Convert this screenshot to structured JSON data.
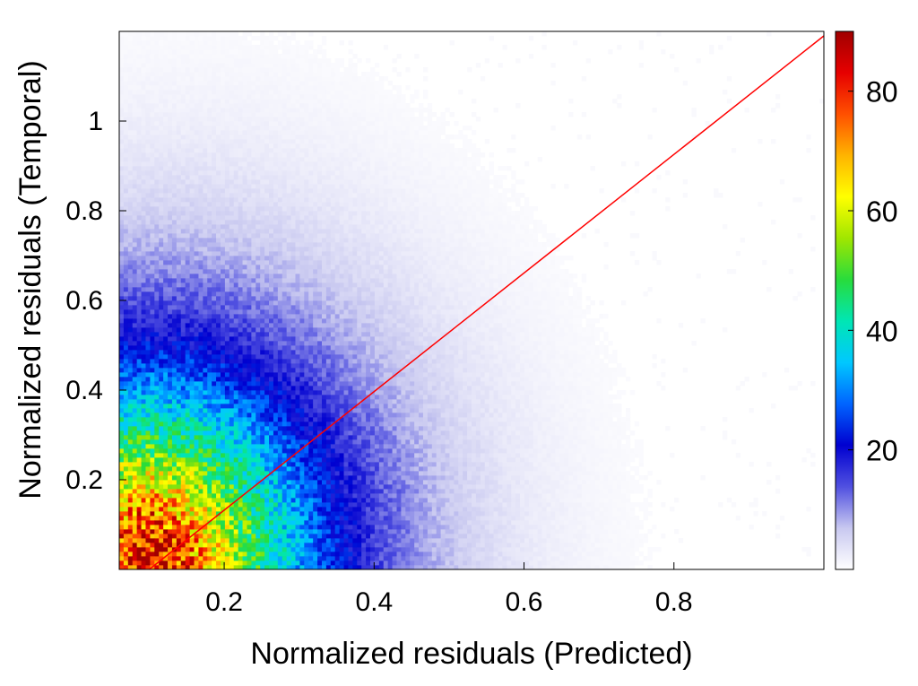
{
  "chart_data": {
    "type": "heatmap",
    "title": "",
    "xlabel": "Normalized residuals (Predicted)",
    "ylabel": "Normalized residuals (Temporal)",
    "xlim": [
      0.06,
      1.0
    ],
    "ylim": [
      0.0,
      1.2
    ],
    "x_ticks": [
      0.2,
      0.4,
      0.6,
      0.8
    ],
    "x_tick_labels": [
      "0.2",
      "0.4",
      "0.6",
      "0.8"
    ],
    "y_ticks": [
      0.2,
      0.4,
      0.6,
      0.8,
      1.0
    ],
    "y_tick_labels": [
      "0.2",
      "0.4",
      "0.6",
      "0.8",
      "1"
    ],
    "colorbar": {
      "range": [
        0,
        90
      ],
      "ticks": [
        20,
        40,
        60,
        80
      ],
      "tick_labels": [
        "20",
        "40",
        "60",
        "80"
      ],
      "colormap": [
        "#ffffff",
        "#c8c8f0",
        "#5050e0",
        "#0000d0",
        "#0064ff",
        "#00c8ff",
        "#00e6b4",
        "#28dc3c",
        "#a0e600",
        "#ffff00",
        "#ffb400",
        "#ff5000",
        "#e60000",
        "#a00000"
      ]
    },
    "reference_line": {
      "from": [
        0.1,
        0.0
      ],
      "to": [
        1.0,
        1.19
      ],
      "color": "#ff0000"
    },
    "density_model": {
      "peak_count": 88,
      "peak_location": [
        0.1,
        0.03
      ],
      "falloff_radius": 0.42
    },
    "grid": false,
    "legend": "none"
  }
}
